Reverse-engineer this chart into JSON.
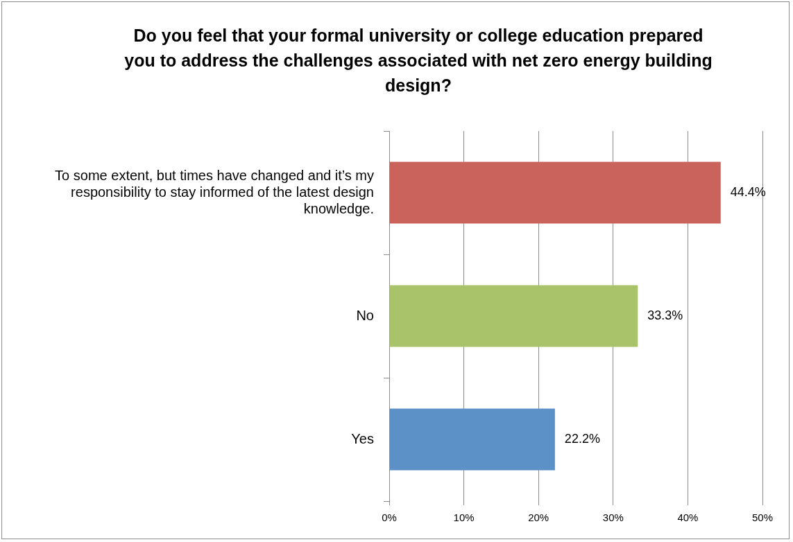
{
  "chart_data": {
    "type": "bar",
    "orientation": "horizontal",
    "title": "Do you feel that your formal university or college education prepared you to address the challenges associated with net zero energy building design?",
    "categories": [
      "To some extent, but times have changed and it’s my responsibility to stay informed of the latest design knowledge.",
      "No",
      "Yes"
    ],
    "values": [
      44.4,
      33.3,
      22.2
    ],
    "colors": [
      "#c9635b",
      "#a9c36b",
      "#5b91c6"
    ],
    "value_labels": [
      "44.4%",
      "33.3%",
      "22.2%"
    ],
    "xlim": [
      0,
      50
    ],
    "xticks": [
      {
        "value": 0,
        "label": "0%"
      },
      {
        "value": 10,
        "label": "10%"
      },
      {
        "value": 20,
        "label": "20%"
      },
      {
        "value": 30,
        "label": "30%"
      },
      {
        "value": 40,
        "label": "40%"
      },
      {
        "value": 50,
        "label": "50%"
      }
    ],
    "grid": "x"
  }
}
